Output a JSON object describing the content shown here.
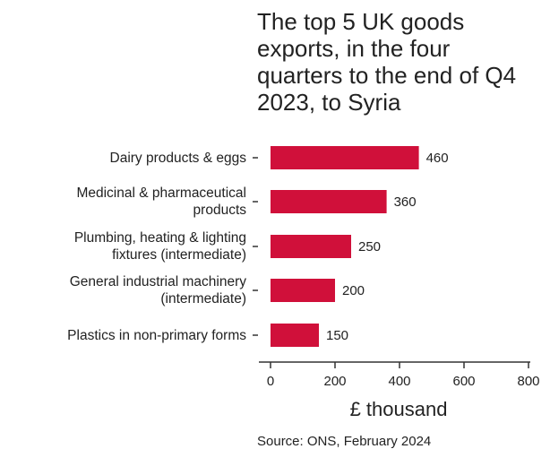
{
  "chart_data": {
    "type": "bar",
    "orientation": "horizontal",
    "title_lines": [
      "The top 5 UK goods",
      "exports, in the four",
      "quarters to the end of Q4",
      "2023, to Syria"
    ],
    "categories": [
      [
        "Dairy products & eggs"
      ],
      [
        "Medicinal & pharmaceutical",
        "products"
      ],
      [
        "Plumbing, heating & lighting",
        "fixtures (intermediate)"
      ],
      [
        "General industrial machinery",
        "(intermediate)"
      ],
      [
        "Plastics in non-primary forms"
      ]
    ],
    "values": [
      460,
      360,
      250,
      200,
      150
    ],
    "value_labels": [
      "460",
      "360",
      "250",
      "200",
      "150"
    ],
    "xlabel": "£ thousand",
    "xlim": [
      0,
      800
    ],
    "xticks": [
      0,
      200,
      400,
      600,
      800
    ],
    "xtick_labels": [
      "0",
      "200",
      "400",
      "600",
      "800"
    ],
    "bar_color": "#d0103a",
    "grid": false,
    "source": "Source: ONS, February 2024"
  }
}
